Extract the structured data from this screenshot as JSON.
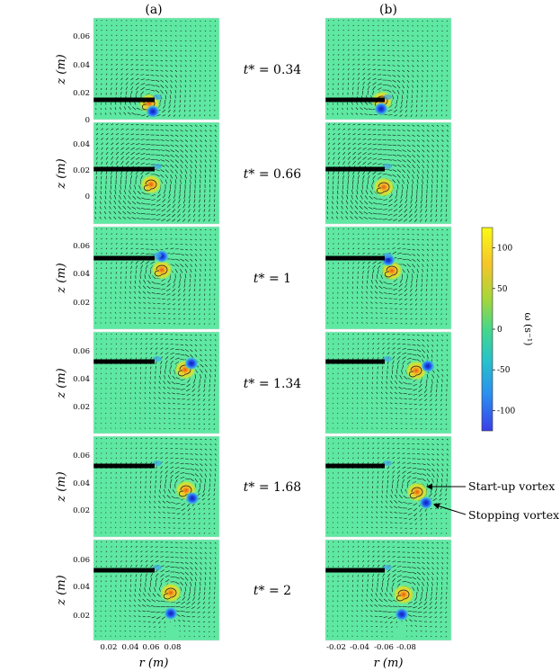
{
  "figure": {
    "column_labels": [
      "(a)",
      "(b)"
    ],
    "z_axis_label": "z (m)",
    "r_axis_label": "r (m)",
    "colorbar_label": "ω (s⁻¹)",
    "annotations": {
      "startup": "Start-up vortex",
      "stopping": "Stopping vortex"
    },
    "time_labels": [
      {
        "symbol": "t*",
        "value": "= 0.34"
      },
      {
        "symbol": "t*",
        "value": "= 0.66"
      },
      {
        "symbol": "t*",
        "value": "= 1"
      },
      {
        "symbol": "t*",
        "value": "= 1.34"
      },
      {
        "symbol": "t*",
        "value": "= 1.68"
      },
      {
        "symbol": "t*",
        "value": "= 2"
      }
    ],
    "row_z_ticks": [
      [
        "0.06",
        "0.04",
        "0.02",
        "0"
      ],
      [
        "0.04",
        "0.02",
        "0"
      ],
      [
        "0.06",
        "0.04",
        "0.02"
      ],
      [
        "0.06",
        "0.04",
        "0.02"
      ],
      [
        "0.06",
        "0.04",
        "0.02"
      ],
      [
        "0.06",
        "0.04",
        "0.02"
      ]
    ],
    "col_a_r_ticks": [
      "0.02",
      "0.04",
      "0.06",
      "0.08"
    ],
    "col_b_r_ticks": [
      "-0.02",
      "-0.04",
      "-0.06",
      "-0.08"
    ],
    "colorbar_ticks": [
      "100",
      "50",
      "0",
      "-50",
      "-100"
    ],
    "colorbar_range": [
      -125,
      125
    ],
    "colors": {
      "background_field": "#5ee8a2",
      "plate": "#000000",
      "positive_core": "#f2b51e",
      "negative_core": "#1e3fe0"
    }
  }
}
